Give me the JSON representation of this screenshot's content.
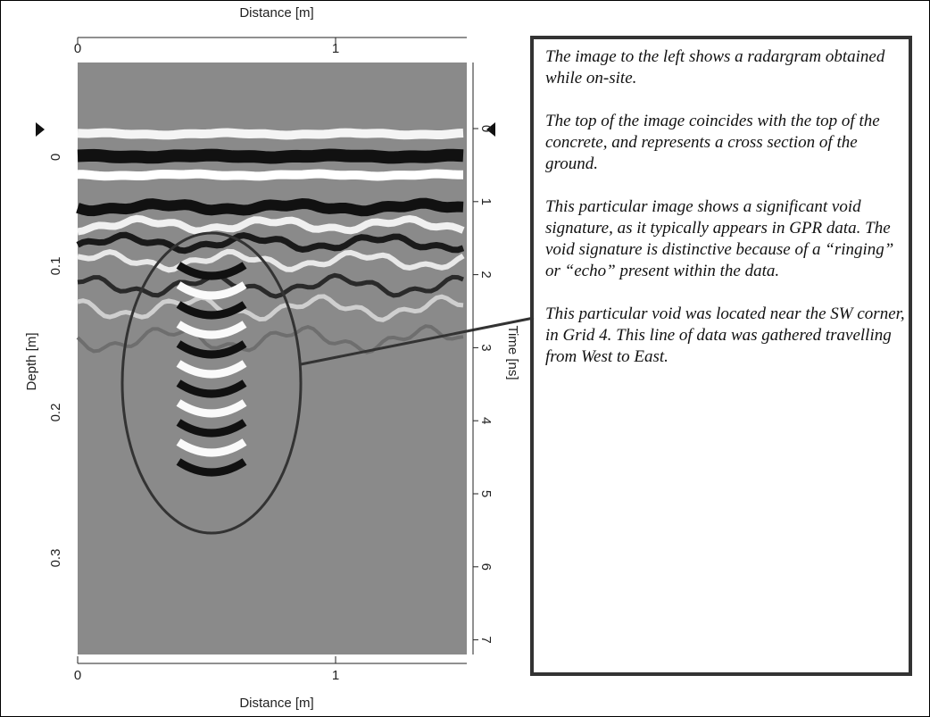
{
  "figure": {
    "top_axis": {
      "label": "Distance [m]",
      "ticks": [
        "0",
        "1"
      ]
    },
    "bottom_axis": {
      "label": "Distance [m]",
      "ticks": [
        "0",
        "1"
      ]
    },
    "left_axis": {
      "label": "Depth [m]",
      "ticks": [
        "0",
        "0.1",
        "0.2",
        "0.3"
      ]
    },
    "right_axis": {
      "label": "Time [ns]",
      "ticks": [
        "0",
        "1",
        "2",
        "3",
        "4",
        "5",
        "6",
        "7"
      ]
    }
  },
  "description": {
    "paragraphs": [
      "The image to the left shows a radargram obtained while on-site.",
      "The top of the image coincides with the top of the concrete, and represents a cross section of the ground.",
      "This particular image shows a significant void signature, as it typically appears in GPR data.  The void signature is distinctive because of a “ringing” or “echo” present within the data.",
      "This particular void was located near the SW corner, in Grid 4.  This line of data was gathered travelling from West to East."
    ]
  }
}
